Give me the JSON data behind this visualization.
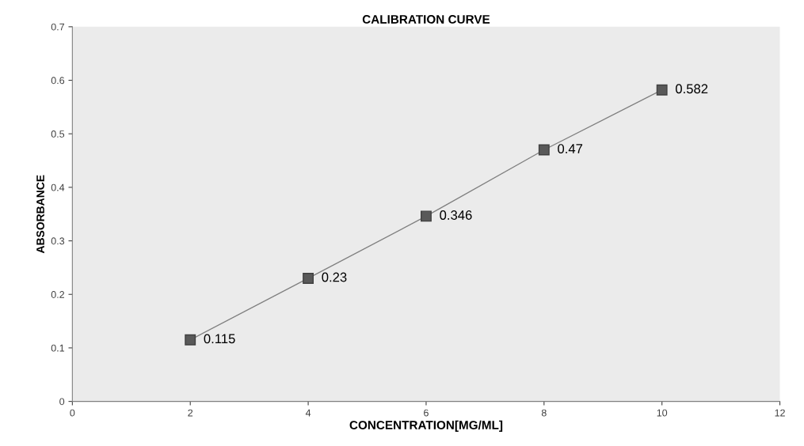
{
  "chart_data": {
    "type": "line",
    "title": "CALIBRATION CURVE",
    "xlabel": "CONCENTRATION[MG/ML]",
    "ylabel": "ABSORBANCE",
    "x": [
      2,
      4,
      6,
      8,
      10
    ],
    "series": [
      {
        "color": "#595959",
        "values": [
          0.115,
          0.23,
          0.346,
          0.47,
          0.582
        ]
      }
    ],
    "marker": "square",
    "data_labels": true,
    "grid": false,
    "legend": false,
    "xlim": [
      0,
      12
    ],
    "xticks": [
      0,
      2,
      4,
      6,
      8,
      10,
      12
    ],
    "ylim": [
      0,
      0.7
    ],
    "yticks": [
      0,
      0.1,
      0.2,
      0.3,
      0.4,
      0.5,
      0.6,
      0.7
    ]
  }
}
